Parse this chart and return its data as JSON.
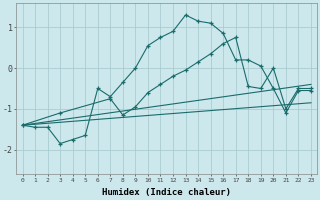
{
  "xlabel": "Humidex (Indice chaleur)",
  "bg_color": "#cce8ec",
  "grid_color": "#aaccd0",
  "line_color": "#1a6b6b",
  "xlim": [
    -0.5,
    23.5
  ],
  "ylim": [
    -2.6,
    1.6
  ],
  "xticks": [
    0,
    1,
    2,
    3,
    4,
    5,
    6,
    7,
    8,
    9,
    10,
    11,
    12,
    13,
    14,
    15,
    16,
    17,
    18,
    19,
    20,
    21,
    22,
    23
  ],
  "yticks": [
    -2,
    -1,
    0,
    1
  ],
  "curve1_x": [
    0,
    1,
    2,
    3,
    4,
    5,
    6,
    7,
    8,
    9,
    10,
    11,
    12,
    13,
    14,
    15,
    16,
    17,
    18,
    19,
    20,
    21,
    22,
    23
  ],
  "curve1_y": [
    -1.4,
    -1.45,
    -1.45,
    -1.85,
    -1.75,
    -1.65,
    -0.5,
    -0.7,
    -0.35,
    0.0,
    0.55,
    0.75,
    0.9,
    1.3,
    1.15,
    1.1,
    0.85,
    0.2,
    0.2,
    0.05,
    -0.5,
    -1.1,
    -0.55,
    -0.55
  ],
  "curve2_x": [
    0,
    3,
    7,
    8,
    9,
    10,
    11,
    12,
    13,
    14,
    15,
    16,
    17,
    18,
    19,
    20,
    21,
    22,
    23
  ],
  "curve2_y": [
    -1.4,
    -1.1,
    -0.75,
    -1.15,
    -0.95,
    -0.6,
    -0.4,
    -0.2,
    -0.05,
    0.15,
    0.35,
    0.6,
    0.75,
    -0.45,
    -0.5,
    0.0,
    -1.0,
    -0.5,
    -0.5
  ],
  "line1_x": [
    0,
    23
  ],
  "line1_y": [
    -1.4,
    -0.4
  ],
  "line2_x": [
    0,
    23
  ],
  "line2_y": [
    -1.4,
    -0.85
  ]
}
